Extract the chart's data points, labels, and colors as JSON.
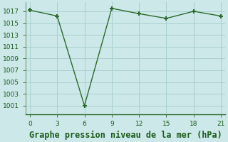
{
  "x": [
    0,
    3,
    6,
    9,
    12,
    15,
    18,
    21
  ],
  "y": [
    1017.2,
    1016.2,
    1001.0,
    1017.5,
    1016.6,
    1015.8,
    1017.0,
    1016.2
  ],
  "xlabel": "Graphe pression niveau de la mer (hPa)",
  "xlim": [
    -0.5,
    21.5
  ],
  "ylim": [
    999.5,
    1018.5
  ],
  "yticks": [
    1001,
    1003,
    1005,
    1007,
    1009,
    1011,
    1013,
    1015,
    1017
  ],
  "xticks": [
    0,
    3,
    6,
    9,
    12,
    15,
    18,
    21
  ],
  "line_color": "#2d6a2d",
  "marker_color": "#2d6a2d",
  "bg_color": "#cce8e8",
  "plot_bg": "#cce8e8",
  "grid_color": "#aacfcf",
  "label_color": "#1a5c1a",
  "axis_line_color": "#2d6a2d",
  "tick_fontsize": 6.5,
  "xlabel_fontsize": 8.5
}
